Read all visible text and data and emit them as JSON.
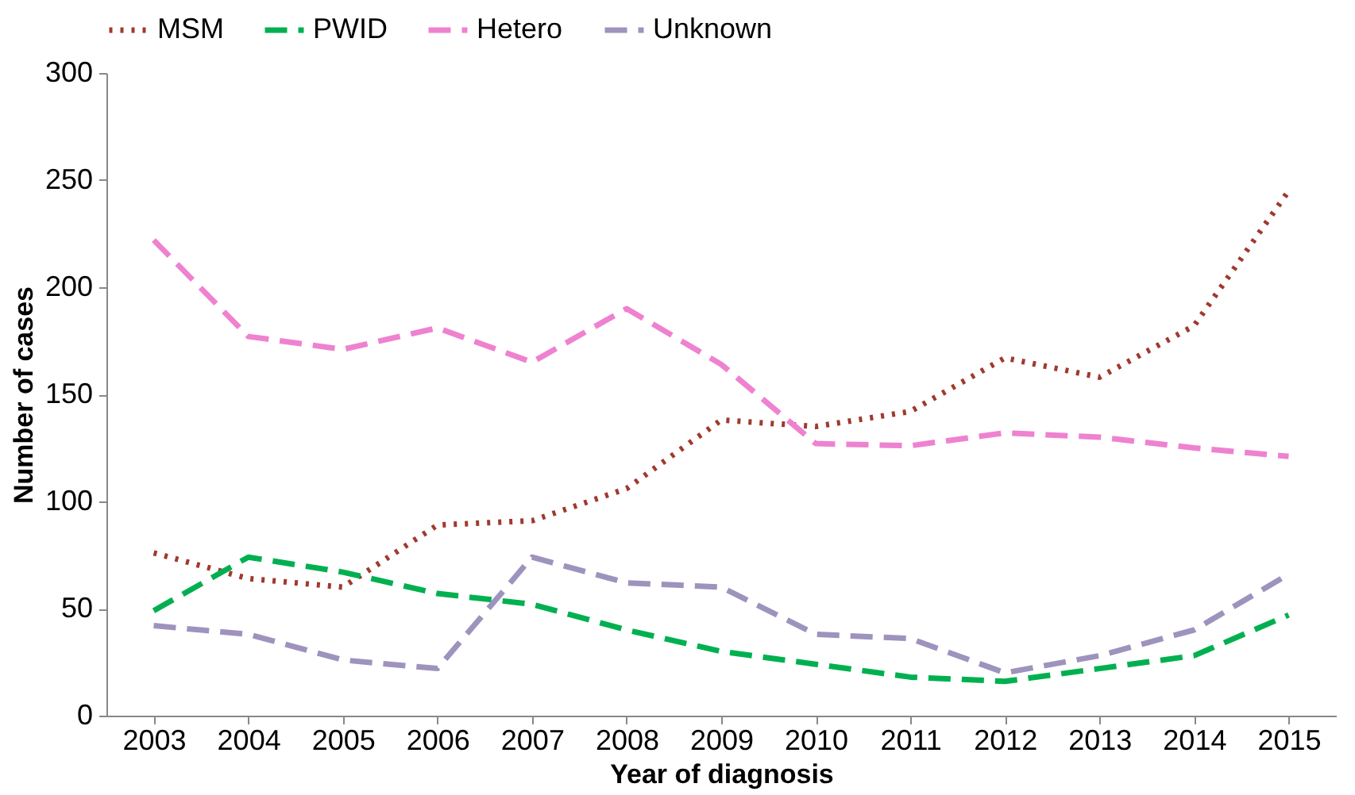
{
  "chart_data": {
    "type": "line",
    "xlabel": "Year of diagnosis",
    "ylabel": "Number of cases",
    "categories": [
      "2003",
      "2004",
      "2005",
      "2006",
      "2007",
      "2008",
      "2009",
      "2010",
      "2011",
      "2012",
      "2013",
      "2014",
      "2015"
    ],
    "ylim": [
      0,
      300
    ],
    "yticks": [
      0,
      50,
      100,
      150,
      200,
      250,
      300
    ],
    "grid": false,
    "legend": "top",
    "marker": "none",
    "series": [
      {
        "name": "MSM",
        "color": "#a0392e",
        "line_style": "dotted",
        "values": [
          76,
          64,
          60,
          89,
          91,
          106,
          138,
          135,
          142,
          167,
          158,
          182,
          245
        ]
      },
      {
        "name": "PWID",
        "color": "#00b050",
        "line_style": "dashed",
        "values": [
          49,
          74,
          67,
          57,
          52,
          40,
          30,
          24,
          18,
          16,
          22,
          28,
          47
        ]
      },
      {
        "name": "Hetero",
        "color": "#ee82d0",
        "line_style": "dashed",
        "values": [
          222,
          177,
          171,
          181,
          165,
          190,
          164,
          127,
          126,
          132,
          130,
          125,
          121
        ]
      },
      {
        "name": "Unknown",
        "color": "#9e93bd",
        "line_style": "dashed",
        "values": [
          42,
          38,
          26,
          22,
          74,
          62,
          60,
          38,
          36,
          20,
          28,
          40,
          66
        ]
      }
    ]
  }
}
